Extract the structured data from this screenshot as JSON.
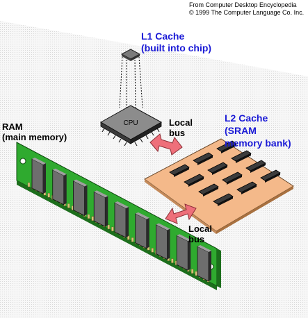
{
  "credit": {
    "line1": "From Computer Desktop Encyclopedia",
    "line2": "© 1999 The Computer Language Co. Inc."
  },
  "l1": {
    "line1": "L1 Cache",
    "line2": "(built into chip)"
  },
  "cpu": {
    "label": "CPU"
  },
  "local_bus_top": {
    "line1": "Local",
    "line2": "bus"
  },
  "l2": {
    "line1": "L2 Cache",
    "line2": "(SRAM",
    "line3": "memory bank)"
  },
  "ram": {
    "line1": "RAM",
    "line2": "(main memory)"
  },
  "local_bus_bottom": {
    "line1": "Local",
    "line2": "bus"
  },
  "colors": {
    "label_blue": "#1a1ad6",
    "pcb_green": "#2faa2f",
    "sram_board": "#f4b98a",
    "arrow_pink": "#ee6f7a",
    "chip_gray": "#8a8a8a"
  }
}
